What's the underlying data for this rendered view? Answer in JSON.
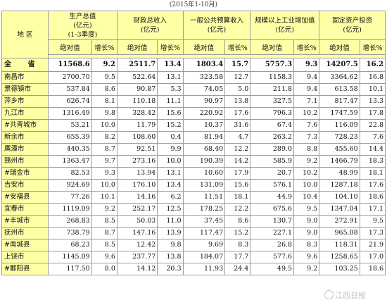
{
  "subtitle": "(2015年1-10月)",
  "headers": {
    "region": "地 区",
    "gdp": "生产总值\n(亿元)\n(1-3季度)",
    "fiscal": "财政总收入\n(亿元)",
    "budget": "一般公共预算收入\n(亿元)",
    "industry": "规模以上工业增加值\n(亿元)",
    "fixed": "固定资产投资\n(亿元)",
    "abs": "绝对值",
    "growth": "增长%"
  },
  "total": {
    "name": "全 省",
    "cells": [
      "11568.6",
      "9.2",
      "2511.7",
      "13.4",
      "1803.4",
      "15.7",
      "5757.3",
      "9.3",
      "14207.5",
      "16.2"
    ]
  },
  "rows": [
    {
      "name": "南昌市",
      "cells": [
        "2700.70",
        "9.5",
        "522.64",
        "13.1",
        "323.58",
        "12.7",
        "1158.3",
        "9.4",
        "3364.62",
        "16.8"
      ]
    },
    {
      "name": "景德镇市",
      "cells": [
        "537.84",
        "8.6",
        "90.87",
        "5.3",
        "74.05",
        "5.0",
        "211.8",
        "9.4",
        "613.58",
        "10.1"
      ]
    },
    {
      "name": "萍乡市",
      "cells": [
        "626.74",
        "8.1",
        "110.18",
        "11.1",
        "90.97",
        "13.8",
        "327.5",
        "7.1",
        "817.47",
        "13.3"
      ]
    },
    {
      "name": "九江市",
      "cells": [
        "1316.49",
        "9.8",
        "328.42",
        "15.6",
        "220.92",
        "17.6",
        "796.3",
        "10.2",
        "1747.59",
        "17.8"
      ]
    },
    {
      "name": "#共青城市",
      "cells": [
        "53.21",
        "10.0",
        "11.79",
        "15.2",
        "10.37",
        "31.6",
        "67.4",
        "7.6",
        "116.09",
        "22.8"
      ]
    },
    {
      "name": "新余市",
      "cells": [
        "655.39",
        "8.2",
        "108.60",
        "0.4",
        "81.94",
        "4.7",
        "263.2",
        "7.3",
        "728.23",
        "7.6"
      ]
    },
    {
      "name": "鹰潭市",
      "cells": [
        "440.35",
        "8.7",
        "92.51",
        "9.9",
        "68.40",
        "12.2",
        "289.0",
        "8.8",
        "455.60",
        "14.4"
      ]
    },
    {
      "name": "赣州市",
      "cells": [
        "1363.47",
        "9.7",
        "273.16",
        "10.0",
        "190.39",
        "14.2",
        "585.9",
        "9.2",
        "1466.79",
        "18.3"
      ]
    },
    {
      "name": "#瑞金市",
      "cells": [
        "82.53",
        "9.3",
        "13.94",
        "13.1",
        "10.60",
        "17.9",
        "20.7",
        "10.2",
        "48.99",
        "18.1"
      ]
    },
    {
      "name": "吉安市",
      "cells": [
        "924.69",
        "10.0",
        "176.10",
        "13.4",
        "131.09",
        "15.6",
        "576.1",
        "10.0",
        "1287.18",
        "17.6"
      ]
    },
    {
      "name": "#安福县",
      "cells": [
        "77.26",
        "10.1",
        "14.16",
        "6.2",
        "11.51",
        "18.1",
        "44.9",
        "10.4",
        "104.10",
        "18.6"
      ]
    },
    {
      "name": "宜春市",
      "cells": [
        "1119.09",
        "9.2",
        "252.17",
        "12.5",
        "178.25",
        "12.2",
        "675.6",
        "9.5",
        "1347.04",
        "17.1"
      ]
    },
    {
      "name": "#丰城市",
      "cells": [
        "268.83",
        "8.5",
        "50.03",
        "11.0",
        "37.45",
        "8.6",
        "130.7",
        "9.0",
        "272.91",
        "9.5"
      ]
    },
    {
      "name": "抚州市",
      "cells": [
        "738.79",
        "8.7",
        "147.16",
        "13.9",
        "117.47",
        "15.2",
        "227.1",
        "9.0",
        "965.08",
        "17.3"
      ]
    },
    {
      "name": "#南城县",
      "cells": [
        "68.23",
        "8.5",
        "12.42",
        "9.8",
        "9.69",
        "8.3",
        "26.8",
        "8.3",
        "118.31",
        "21.9"
      ]
    },
    {
      "name": "上饶市",
      "cells": [
        "1145.09",
        "9.6",
        "237.77",
        "13.8",
        "184.07",
        "17.7",
        "577.6",
        "9.6",
        "1258.65",
        "17.0"
      ]
    },
    {
      "name": "#鄱阳县",
      "cells": [
        "117.50",
        "8.0",
        "14.12",
        "20.3",
        "11.93",
        "24.4",
        "49.5",
        "9.2",
        "103.25",
        "18.6"
      ]
    }
  ],
  "watermark": "江西日报"
}
